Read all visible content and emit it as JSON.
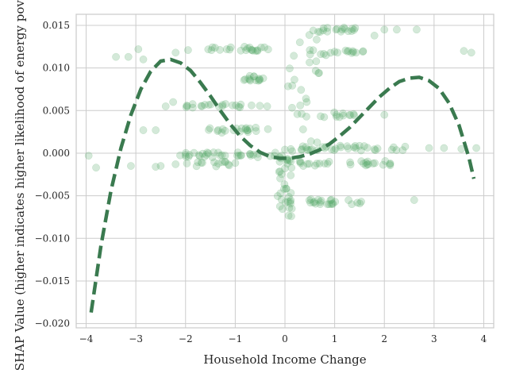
{
  "chart_data": {
    "type": "scatter",
    "title": "",
    "xlabel": "Household Income Change",
    "ylabel": "SHAP Value (higher indicates higher likelihood of energy poverty)",
    "xlim": [
      -4.2,
      4.2
    ],
    "ylim": [
      -0.0205,
      0.0163
    ],
    "x_ticks": [
      -4,
      -3,
      -2,
      -1,
      0,
      1,
      2,
      3,
      4
    ],
    "x_tick_labels": [
      "−4",
      "−3",
      "−2",
      "−1",
      "0",
      "1",
      "2",
      "3",
      "4"
    ],
    "y_ticks": [
      -0.02,
      -0.015,
      -0.01,
      -0.005,
      0.0,
      0.005,
      0.01,
      0.015
    ],
    "y_tick_labels": [
      "−0.020",
      "−0.015",
      "−0.010",
      "−0.005",
      "0.000",
      "0.005",
      "0.010",
      "0.015"
    ],
    "grid": true,
    "series": [
      {
        "kind": "scatter",
        "color": "#55a868",
        "opacity": 0.25,
        "clusters": [
          {
            "x_range": [
              -1.7,
              -0.3
            ],
            "y": 0.0122,
            "n": 22
          },
          {
            "x_range": [
              -1.0,
              -0.3
            ],
            "y": 0.0088,
            "n": 14
          },
          {
            "x_range": [
              -2.0,
              -0.35
            ],
            "y": 0.0055,
            "n": 22
          },
          {
            "x_range": [
              -1.7,
              -0.3
            ],
            "y": 0.0027,
            "n": 20
          },
          {
            "x_range": [
              -2.2,
              -0.05
            ],
            "y": -0.0002,
            "n": 34
          },
          {
            "x_range": [
              -2.0,
              -0.9
            ],
            "y": -0.0013,
            "n": 14
          },
          {
            "x_range": [
              0.5,
              1.6
            ],
            "y": 0.0145,
            "n": 18
          },
          {
            "x_range": [
              0.45,
              1.6
            ],
            "y": 0.0118,
            "n": 18
          },
          {
            "x_range": [
              0.3,
              1.4
            ],
            "y": 0.0045,
            "n": 14
          },
          {
            "x_range": [
              0.3,
              2.6
            ],
            "y": 0.0006,
            "n": 34
          },
          {
            "x_range": [
              0.0,
              2.2
            ],
            "y": -0.0012,
            "n": 28
          },
          {
            "x_range": [
              0.0,
              1.6
            ],
            "y": -0.0057,
            "n": 26
          },
          {
            "x_range": [
              -0.15,
              0.15
            ],
            "y_range": [
              -0.0075,
              0.0005
            ],
            "n": 36
          },
          {
            "x_range": [
              0.0,
              0.7
            ],
            "y_range": [
              0.0005,
              0.0145
            ],
            "n": 22
          }
        ],
        "extra_points": [
          {
            "x": -3.95,
            "y": -0.0003
          },
          {
            "x": -3.8,
            "y": -0.0017
          },
          {
            "x": -3.1,
            "y": -0.0015
          },
          {
            "x": -3.4,
            "y": 0.0113
          },
          {
            "x": -3.15,
            "y": 0.0113
          },
          {
            "x": -2.95,
            "y": 0.0122
          },
          {
            "x": -2.85,
            "y": 0.011
          },
          {
            "x": -2.4,
            "y": 0.0055
          },
          {
            "x": -2.85,
            "y": 0.0027
          },
          {
            "x": -2.6,
            "y": 0.0027
          },
          {
            "x": -2.6,
            "y": -0.0016
          },
          {
            "x": -2.5,
            "y": -0.0015
          },
          {
            "x": -2.2,
            "y": -0.0013
          },
          {
            "x": -2.2,
            "y": 0.0118
          },
          {
            "x": -2.25,
            "y": 0.006
          },
          {
            "x": -1.95,
            "y": 0.0121
          },
          {
            "x": -2.0,
            "y": -0.0002
          },
          {
            "x": 2.25,
            "y": 0.0145
          },
          {
            "x": 2.0,
            "y": 0.0145
          },
          {
            "x": 2.65,
            "y": 0.0145
          },
          {
            "x": 3.6,
            "y": 0.012
          },
          {
            "x": 3.75,
            "y": 0.0118
          },
          {
            "x": 3.55,
            "y": 0.0005
          },
          {
            "x": 3.85,
            "y": 0.0006
          },
          {
            "x": 3.2,
            "y": 0.0006
          },
          {
            "x": 2.6,
            "y": -0.0055
          },
          {
            "x": 2.0,
            "y": 0.0045
          },
          {
            "x": 1.8,
            "y": 0.0138
          },
          {
            "x": 2.9,
            "y": 0.0006
          }
        ]
      },
      {
        "kind": "fitted-curve",
        "style": "dashed",
        "color": "#3a7a4f",
        "x": [
          -3.9,
          -3.7,
          -3.5,
          -3.3,
          -3.1,
          -2.9,
          -2.7,
          -2.5,
          -2.3,
          -2.1,
          -1.9,
          -1.7,
          -1.5,
          -1.3,
          -1.1,
          -0.9,
          -0.7,
          -0.5,
          -0.3,
          -0.1,
          0.1,
          0.3,
          0.5,
          0.7,
          0.9,
          1.1,
          1.3,
          1.5,
          1.7,
          1.9,
          2.1,
          2.3,
          2.5,
          2.7,
          2.9,
          3.1,
          3.3,
          3.5,
          3.7,
          3.8
        ],
        "y": [
          -0.0187,
          -0.0108,
          -0.0044,
          0.0006,
          0.0045,
          0.0075,
          0.0096,
          0.0108,
          0.011,
          0.0106,
          0.0097,
          0.0083,
          0.0067,
          0.005,
          0.0034,
          0.002,
          0.0009,
          0.0001,
          -0.0004,
          -0.0006,
          -0.0006,
          -0.0004,
          -0.0001,
          0.0004,
          0.0011,
          0.002,
          0.003,
          0.0042,
          0.0054,
          0.0066,
          0.0076,
          0.0084,
          0.0088,
          0.0089,
          0.0085,
          0.0076,
          0.0059,
          0.0033,
          -0.0005,
          -0.003
        ]
      }
    ]
  }
}
